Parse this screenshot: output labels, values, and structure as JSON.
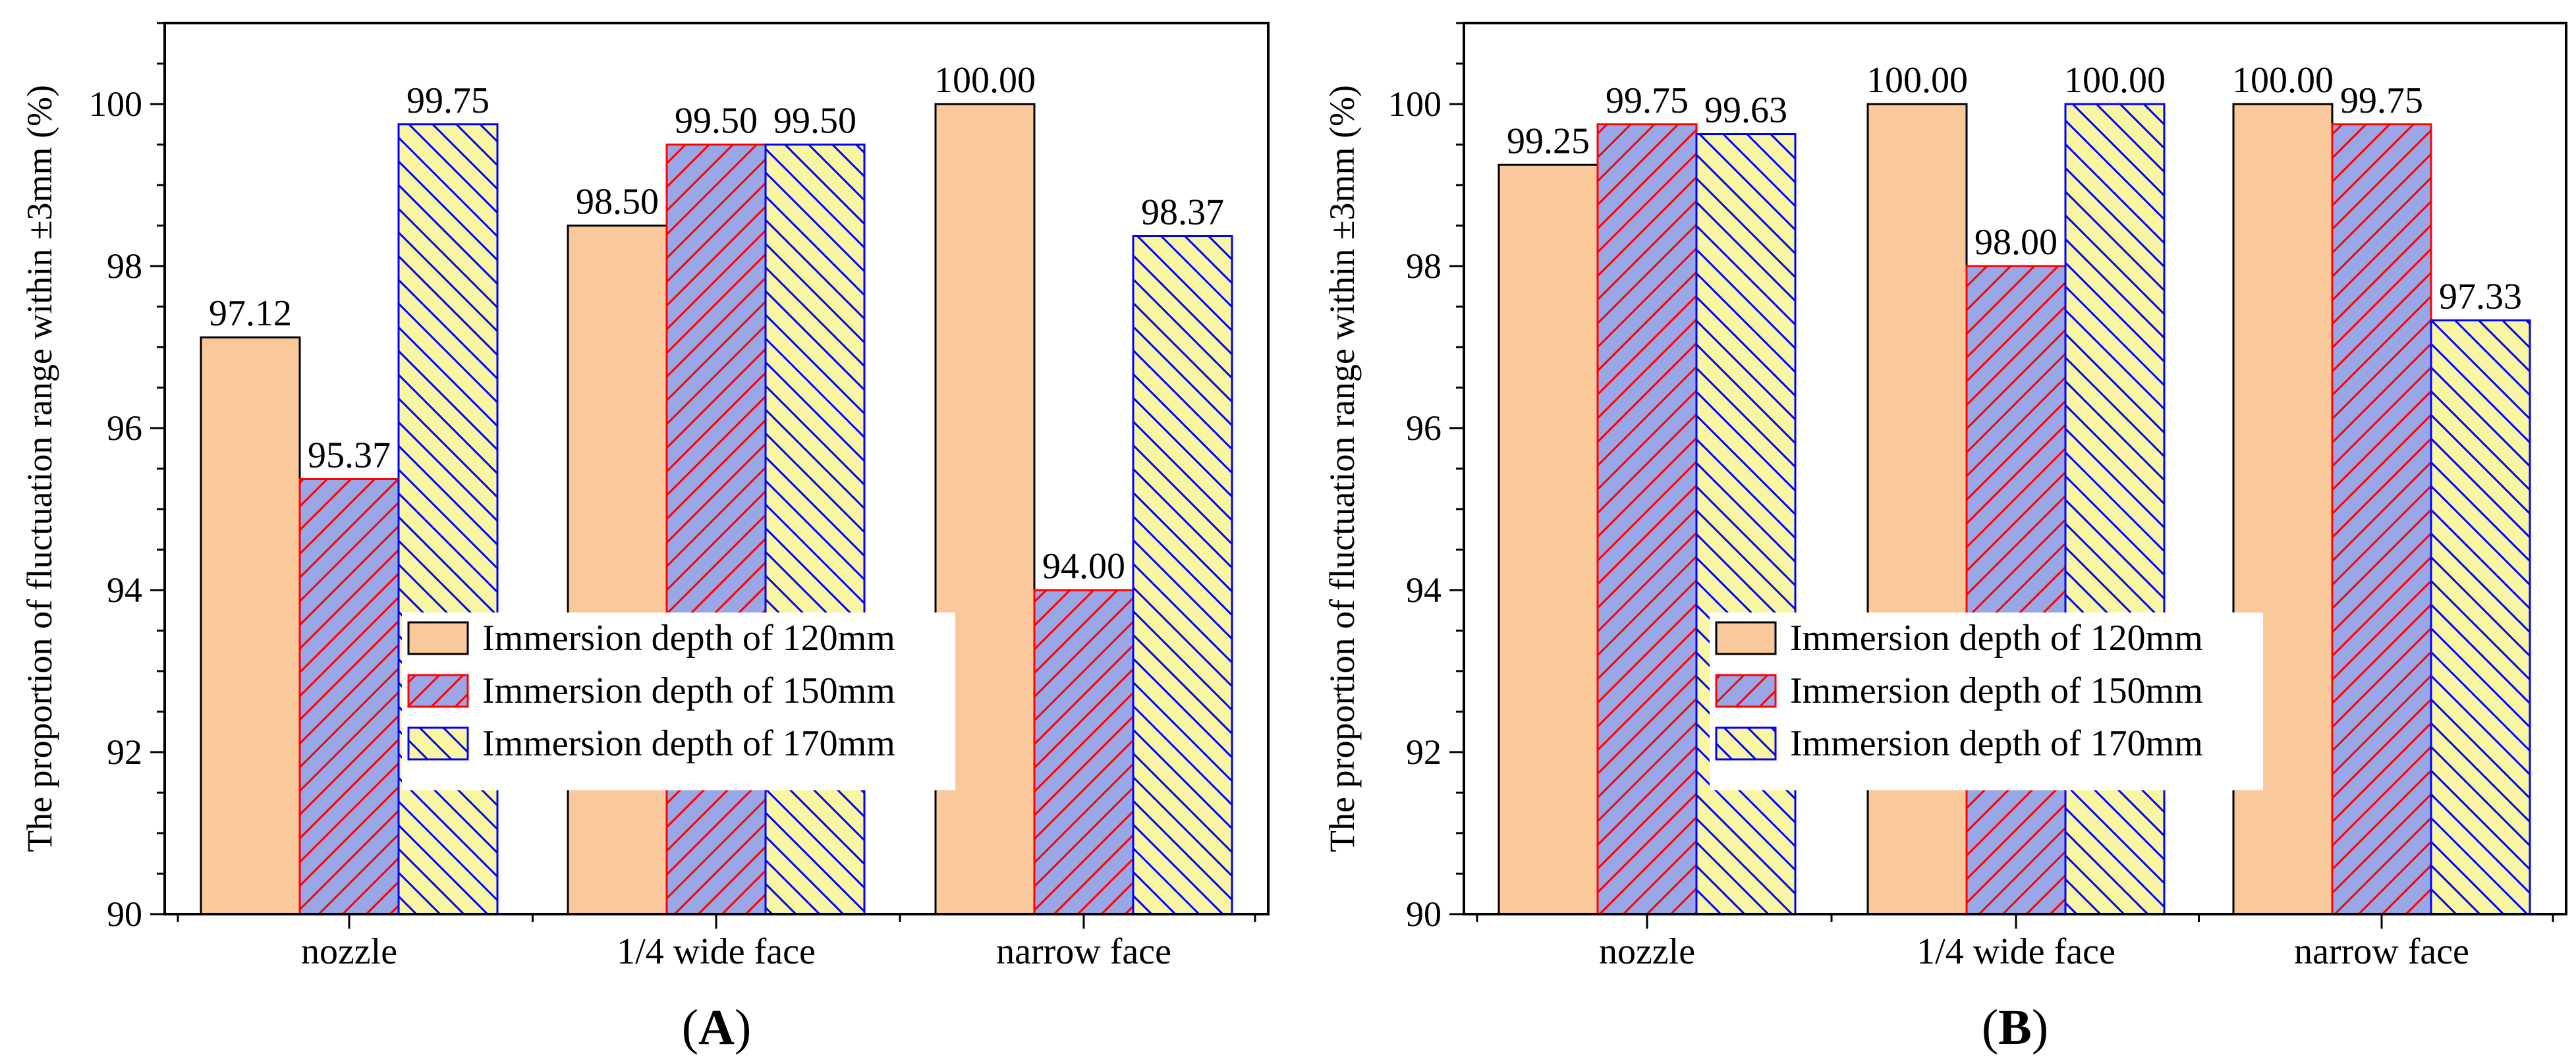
{
  "chart_data": [
    {
      "type": "bar",
      "panel_label": "A",
      "categories": [
        "nozzle",
        "1/4 wide face",
        "narrow face"
      ],
      "ylabel": "The proportion of fluctuation range within ±3mm (%)",
      "ylim": [
        90,
        101
      ],
      "yticks": [
        90,
        92,
        94,
        96,
        98,
        100
      ],
      "legend_position": "center",
      "series": [
        {
          "name": "Immersion depth of 120mm",
          "values": [
            97.12,
            98.5,
            100.0
          ],
          "labels": [
            "97.12",
            "98.50",
            "100.00"
          ]
        },
        {
          "name": "Immersion depth of 150mm",
          "values": [
            95.37,
            99.5,
            94.0
          ],
          "labels": [
            "95.37",
            "99.50",
            "94.00"
          ]
        },
        {
          "name": "Immersion depth of 170mm",
          "values": [
            99.75,
            99.5,
            98.37
          ],
          "labels": [
            "99.75",
            "99.50",
            "98.37"
          ]
        }
      ]
    },
    {
      "type": "bar",
      "panel_label": "B",
      "categories": [
        "nozzle",
        "1/4 wide face",
        "narrow face"
      ],
      "ylabel": "The proportion of fluctuation range within ±3mm (%)",
      "ylim": [
        90,
        101
      ],
      "yticks": [
        90,
        92,
        94,
        96,
        98,
        100
      ],
      "legend_position": "center",
      "series": [
        {
          "name": "Immersion depth of 120mm",
          "values": [
            99.25,
            100.0,
            100.0
          ],
          "labels": [
            "99.25",
            "100.00",
            "100.00"
          ]
        },
        {
          "name": "Immersion depth of 150mm",
          "values": [
            99.75,
            98.0,
            99.75
          ],
          "labels": [
            "99.75",
            "98.00",
            "99.75"
          ]
        },
        {
          "name": "Immersion depth of 170mm",
          "values": [
            99.63,
            100.0,
            97.33
          ],
          "labels": [
            "99.63",
            "100.00",
            "97.33"
          ]
        }
      ]
    }
  ],
  "series_styles": [
    {
      "fill": "#f9c89b",
      "stroke": "#000000",
      "hatch": "none",
      "hatch_color": ""
    },
    {
      "fill": "#9aa7e6",
      "stroke": "#ff0000",
      "hatch": "forward",
      "hatch_color": "#ff0000"
    },
    {
      "fill": "#f8f6a2",
      "stroke": "#0000ff",
      "hatch": "backward",
      "hatch_color": "#0000ff"
    }
  ]
}
